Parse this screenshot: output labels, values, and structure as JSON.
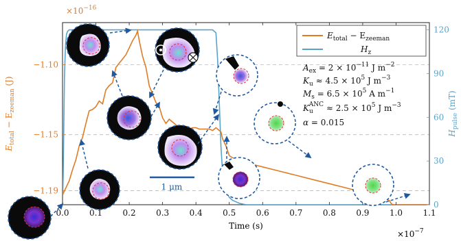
{
  "chart_data": {
    "type": "line",
    "x_axis": {
      "label": "Time (s)",
      "range": [
        0.0,
        1.1
      ],
      "ticks": [
        "0.0",
        "0.1",
        "0.2",
        "0.3",
        "0.4",
        "0.5",
        "0.6",
        "0.7",
        "0.8",
        "0.9",
        "1.0",
        "1.1"
      ],
      "multiplier_base": "×10",
      "multiplier_exp": "−7"
    },
    "y_axis_left": {
      "label_main": "E",
      "label_sub1": "total",
      "label_mid": " − E",
      "label_sub2": "zeeman",
      "label_unit": " (J)",
      "range": [
        -1.2,
        -1.07
      ],
      "ticks": [
        -1.19,
        -1.15,
        -1.1
      ],
      "tick_labels": [
        "−1.19",
        "−1.15",
        "−1.10"
      ],
      "multiplier_base": "×10",
      "multiplier_exp": "−16",
      "color": "#e07b25"
    },
    "y_axis_right": {
      "label_main": "H",
      "label_sub": "pulse",
      "label_unit": " (mT)",
      "range": [
        0,
        125
      ],
      "ticks": [
        0,
        30,
        60,
        90,
        120
      ],
      "tick_labels": [
        "0",
        "30",
        "60",
        "90",
        "120"
      ],
      "color": "#5aa3c8"
    },
    "grid": "horizontal-dashed",
    "legend": {
      "placement": "top-right",
      "entries": [
        {
          "main": "E",
          "sub1": "total",
          "mid": " − E",
          "sub2": "zeeman",
          "color": "#e07b25"
        },
        {
          "main": "H",
          "sub1": "z",
          "mid": "",
          "sub2": "",
          "color": "#5aa3c8"
        }
      ]
    },
    "series": [
      {
        "name": "E_total − E_zeeman",
        "axis": "left",
        "color": "#e07b25",
        "x": [
          0.0,
          0.01,
          0.02,
          0.03,
          0.04,
          0.05,
          0.06,
          0.07,
          0.08,
          0.09,
          0.1,
          0.11,
          0.12,
          0.13,
          0.14,
          0.15,
          0.16,
          0.17,
          0.18,
          0.19,
          0.2,
          0.21,
          0.22,
          0.225,
          0.23,
          0.24,
          0.25,
          0.26,
          0.27,
          0.28,
          0.29,
          0.3,
          0.31,
          0.32,
          0.33,
          0.34,
          0.35,
          0.36,
          0.37,
          0.38,
          0.39,
          0.4,
          0.41,
          0.42,
          0.43,
          0.44,
          0.45,
          0.46,
          0.465,
          0.47,
          0.475,
          0.48,
          0.49,
          0.5,
          0.52,
          0.55,
          0.6,
          0.65,
          0.7,
          0.75,
          0.8,
          0.85,
          0.9,
          0.93,
          0.96,
          0.97,
          0.98,
          0.985,
          0.99,
          1.0,
          1.05,
          1.1
        ],
        "y": [
          -1.193,
          -1.188,
          -1.183,
          -1.175,
          -1.168,
          -1.158,
          -1.152,
          -1.142,
          -1.133,
          -1.132,
          -1.13,
          -1.126,
          -1.128,
          -1.118,
          -1.115,
          -1.113,
          -1.102,
          -1.099,
          -1.096,
          -1.093,
          -1.088,
          -1.083,
          -1.079,
          -1.076,
          -1.083,
          -1.094,
          -1.102,
          -1.115,
          -1.121,
          -1.127,
          -1.13,
          -1.138,
          -1.142,
          -1.139,
          -1.141,
          -1.143,
          -1.145,
          -1.145,
          -1.144,
          -1.146,
          -1.145,
          -1.145,
          -1.146,
          -1.146,
          -1.146,
          -1.146,
          -1.147,
          -1.145,
          -1.146,
          -1.147,
          -1.148,
          -1.153,
          -1.158,
          -1.165,
          -1.168,
          -1.17,
          -1.173,
          -1.176,
          -1.179,
          -1.182,
          -1.185,
          -1.188,
          -1.191,
          -1.193,
          -1.195,
          -1.196,
          -1.197,
          -1.199,
          -1.2,
          -1.2,
          -1.2,
          -1.2
        ]
      },
      {
        "name": "H_z",
        "axis": "right",
        "color": "#5aa3c8",
        "x": [
          0.0,
          0.002,
          0.004,
          0.006,
          0.009,
          0.012,
          0.015,
          0.02,
          0.44,
          0.45,
          0.46,
          0.465,
          0.47,
          0.475,
          0.48,
          0.49,
          0.5,
          0.51,
          0.52,
          0.53,
          0.55,
          1.1
        ],
        "y": [
          0,
          20,
          55,
          90,
          110,
          117,
          119,
          120,
          120,
          120,
          118,
          100,
          70,
          40,
          22,
          10,
          5,
          3,
          2,
          1,
          0,
          0
        ]
      }
    ],
    "annotations": {
      "scale_bar": "1 μm",
      "parameters": [
        {
          "name": "A",
          "sub": "ex",
          "sup": "",
          "rel": " = ",
          "mantissa": "2 × 10",
          "exp": "−11",
          "unit": " J m",
          "unit_exp": "−2"
        },
        {
          "name": "K",
          "sub": "u",
          "sup": "",
          "rel": " ≈ ",
          "mantissa": "4.5 × 10",
          "exp": "5",
          "unit": " J m",
          "unit_exp": "−3"
        },
        {
          "name": "M",
          "sub": "s",
          "sup": "",
          "rel": " = ",
          "mantissa": "6.5 × 10",
          "exp": "5",
          "unit": " A m",
          "unit_exp": "−1"
        },
        {
          "name": "K",
          "sub": "u",
          "sup": "ANC",
          "rel": " ≈ ",
          "mantissa": "2.5 × 10",
          "exp": "5",
          "unit": " J m",
          "unit_exp": "−3"
        },
        {
          "name": "α",
          "sub": "",
          "sup": "",
          "rel": " = ",
          "mantissa": "0.015",
          "exp": "",
          "unit": "",
          "unit_exp": ""
        }
      ]
    }
  }
}
